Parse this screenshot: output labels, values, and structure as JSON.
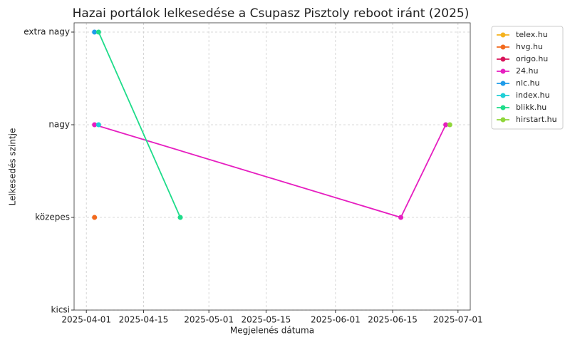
{
  "chart_data": {
    "type": "line",
    "title": "Hazai portálok lelkesedése a Csupasz Pisztoly reboot iránt (2025)",
    "xlabel": "Megjelenés dátuma",
    "ylabel": "Lelkesedés szintje",
    "xlim": [
      "2025-03-29",
      "2025-07-04"
    ],
    "xticks": [
      "2025-04-01",
      "2025-04-15",
      "2025-05-01",
      "2025-05-15",
      "2025-06-01",
      "2025-06-15",
      "2025-07-01"
    ],
    "ylim": [
      0,
      3.1
    ],
    "yticks": [
      {
        "value": 0,
        "label": "kicsi"
      },
      {
        "value": 1,
        "label": "közepes"
      },
      {
        "value": 2,
        "label": "nagy"
      },
      {
        "value": 3,
        "label": "extra nagy"
      }
    ],
    "grid": true,
    "legend": "outside-right",
    "series": [
      {
        "name": "telex.hu",
        "color": "#f5b21e",
        "x": [],
        "values": []
      },
      {
        "name": "hvg.hu",
        "color": "#f26a1e",
        "x": [
          "2025-04-03"
        ],
        "values": [
          1
        ]
      },
      {
        "name": "origo.hu",
        "color": "#d8145a",
        "x": [],
        "values": []
      },
      {
        "name": "24.hu",
        "color": "#e61ec0",
        "x": [
          "2025-04-03",
          "2025-06-17",
          "2025-06-28"
        ],
        "values": [
          2,
          1,
          2
        ]
      },
      {
        "name": "nlc.hu",
        "color": "#1e9be9",
        "x": [
          "2025-04-03"
        ],
        "values": [
          3
        ]
      },
      {
        "name": "index.hu",
        "color": "#1ecfd6",
        "x": [
          "2025-04-04"
        ],
        "values": [
          2
        ]
      },
      {
        "name": "blikk.hu",
        "color": "#1edc8a",
        "x": [
          "2025-04-04",
          "2025-04-24"
        ],
        "values": [
          3,
          1
        ]
      },
      {
        "name": "hirstart.hu",
        "color": "#8fd63a",
        "x": [
          "2025-06-29"
        ],
        "values": [
          2
        ]
      }
    ]
  }
}
